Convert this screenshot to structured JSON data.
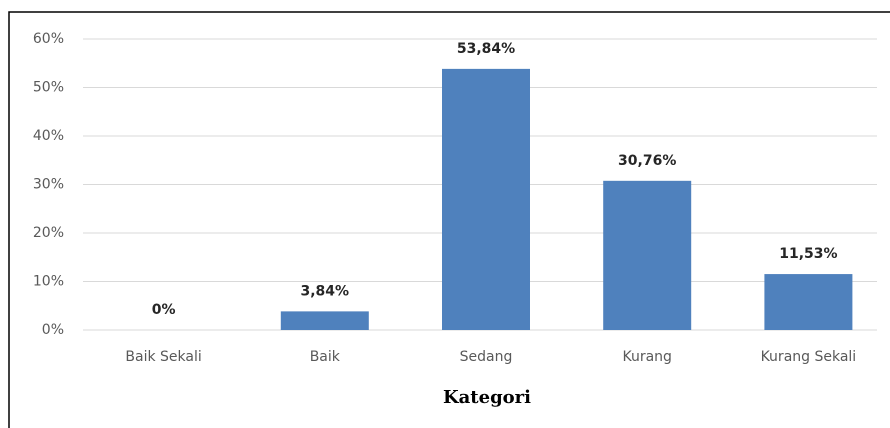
{
  "chart_data": {
    "type": "bar",
    "x_label": "Kategori",
    "categories": [
      "Baik Sekali",
      "Baik",
      "Sedang",
      "Kurang",
      "Kurang Sekali"
    ],
    "values": [
      0,
      3.84,
      53.84,
      30.76,
      11.53
    ],
    "value_labels": [
      "0%",
      "3,84%",
      "53,84%",
      "30,76%",
      "11,53%"
    ],
    "color": "#4f81bd",
    "ylim": [
      0,
      60
    ],
    "yticks": [
      {
        "value": 0,
        "label": "0%"
      },
      {
        "value": 10,
        "label": "10%"
      },
      {
        "value": 20,
        "label": "20%"
      },
      {
        "value": 30,
        "label": "30%"
      },
      {
        "value": 40,
        "label": "40%"
      },
      {
        "value": 50,
        "label": "50%"
      },
      {
        "value": 60,
        "label": "60%"
      }
    ],
    "grid": true
  }
}
